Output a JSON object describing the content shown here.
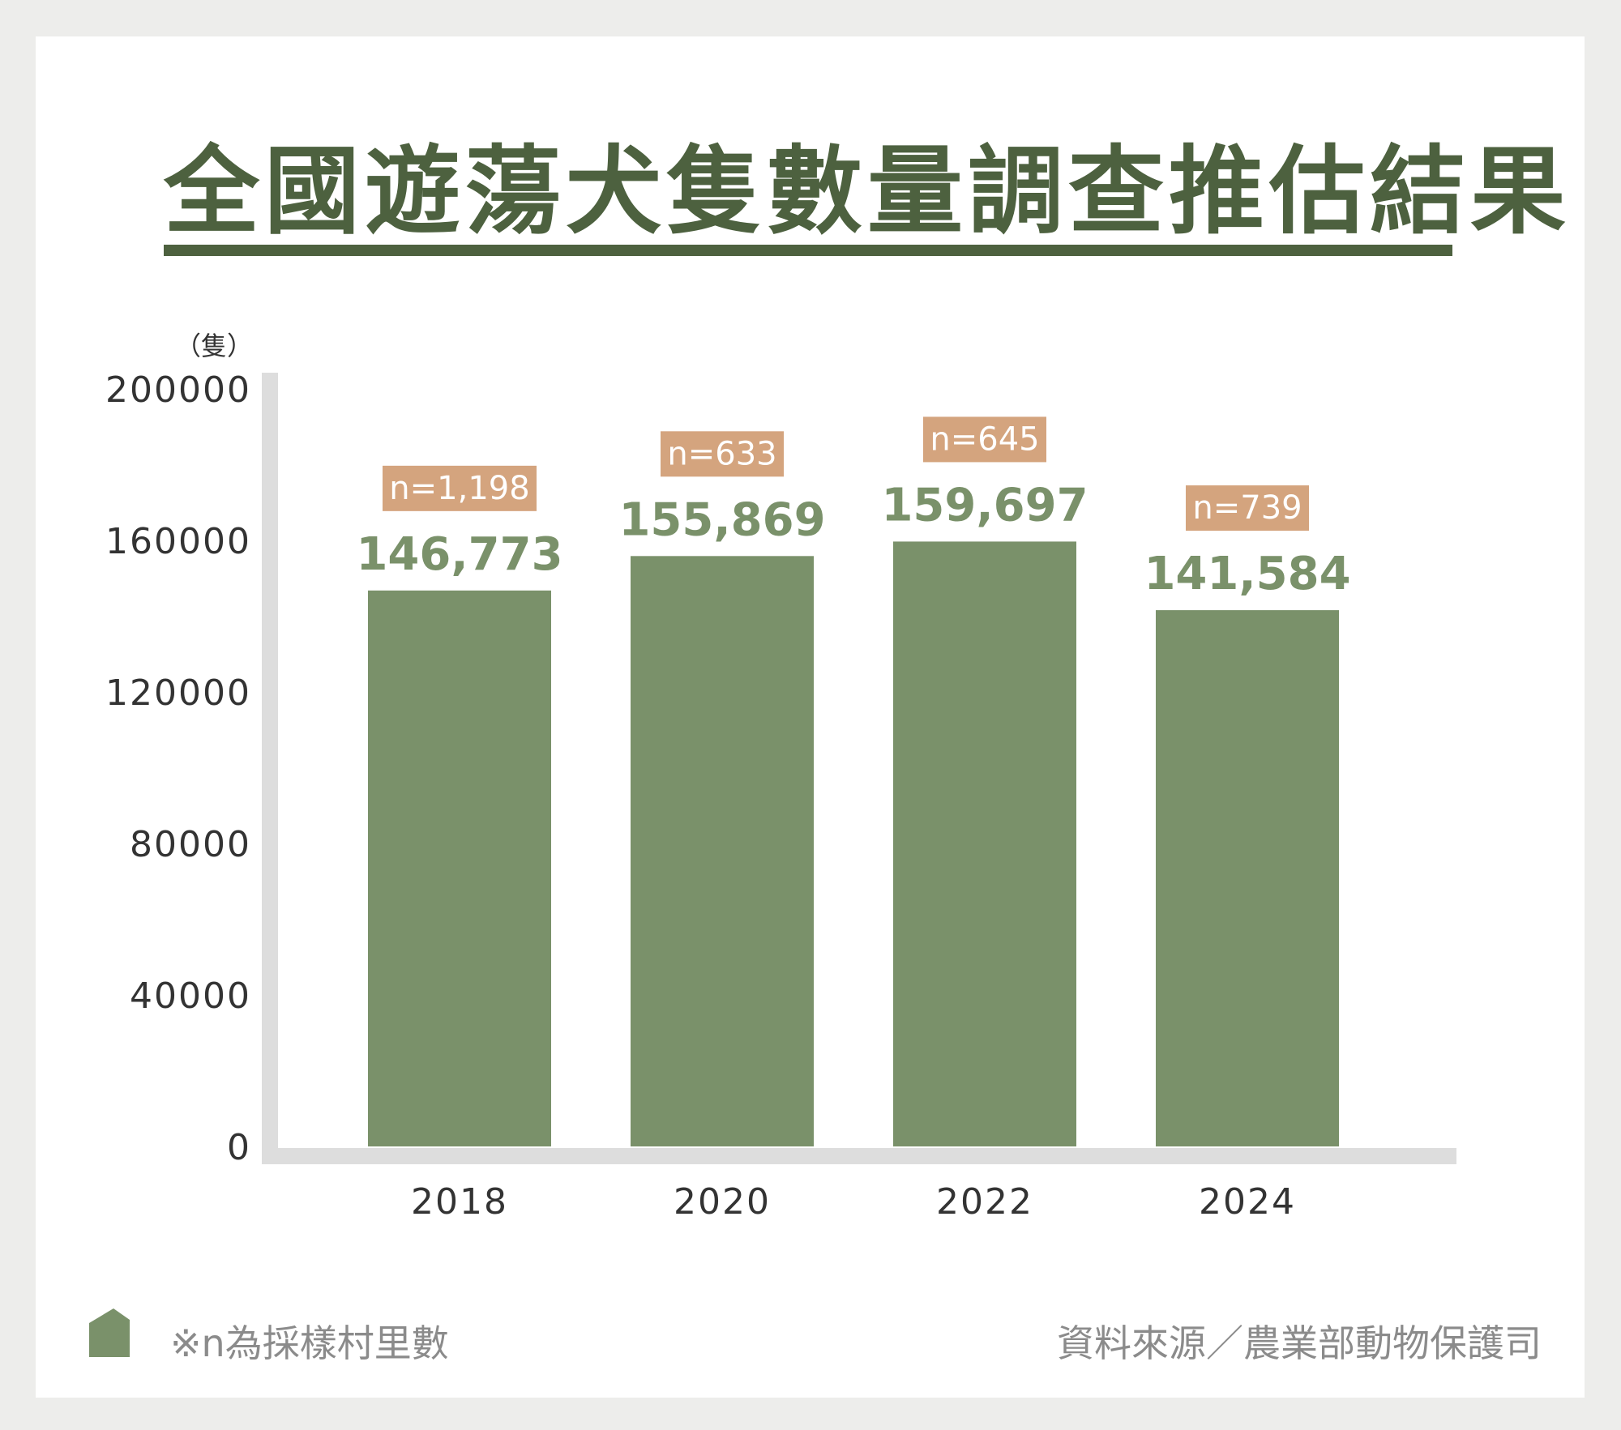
{
  "title": "全國遊蕩犬隻數量調查推估結果",
  "colors": {
    "bar": "#7a916a",
    "title": "#4d613f",
    "badge": "#d4a47e",
    "axis": "#dddddd",
    "tick_text": "#333333",
    "footer_text": "#8b8b8b"
  },
  "footer": {
    "note": "※n為採樣村里數",
    "source": "資料來源／農業部動物保護司",
    "icon": "house-icon"
  },
  "chart_data": {
    "type": "bar",
    "ylabel": "（隻）",
    "ylim": [
      0,
      200000
    ],
    "yticks": [
      0,
      40000,
      80000,
      120000,
      160000,
      200000
    ],
    "ytick_labels": [
      "0",
      "40000",
      "80000",
      "120000",
      "160000",
      "200000"
    ],
    "categories": [
      "2018",
      "2020",
      "2022",
      "2024"
    ],
    "values": [
      146773,
      155869,
      159697,
      141584
    ],
    "value_labels": [
      "146,773",
      "155,869",
      "159,697",
      "141,584"
    ],
    "sample_labels": [
      "n=1,198",
      "n=633",
      "n=645",
      "n=739"
    ],
    "grid": false,
    "legend": "none"
  }
}
